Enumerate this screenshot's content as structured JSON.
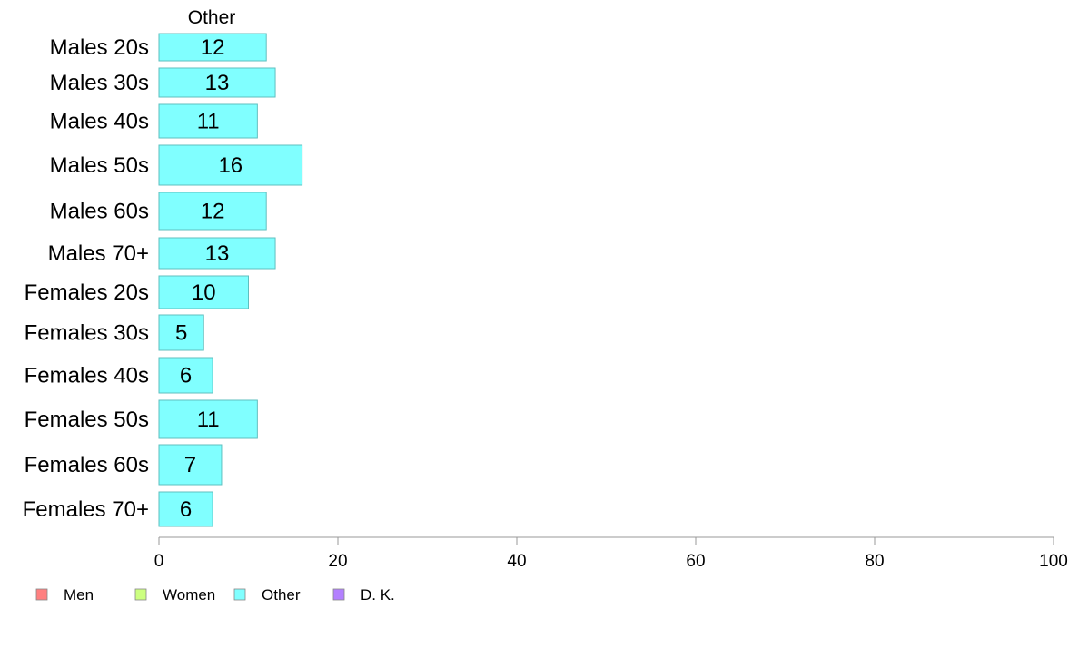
{
  "chart_data": {
    "type": "bar",
    "orientation": "horizontal",
    "panel_title": "Other",
    "categories": [
      "Males 20s",
      "Males 30s",
      "Males 40s",
      "Males 50s",
      "Males 60s",
      "Males 70+",
      "Females 20s",
      "Females 30s",
      "Females 40s",
      "Females 50s",
      "Females 60s",
      "Females 70+"
    ],
    "values": [
      12,
      13,
      11,
      16,
      12,
      13,
      10,
      5,
      6,
      11,
      7,
      6
    ],
    "xlim": [
      0,
      100
    ],
    "xticks": [
      0,
      20,
      40,
      60,
      80,
      100
    ],
    "grid": false,
    "bar_color": "#80ffff",
    "bar_stroke": "#5fbfbf",
    "legend": {
      "placement": "bottom-left",
      "items": [
        {
          "label": "Men",
          "color": "#ff8080"
        },
        {
          "label": "Women",
          "color": "#ccff80"
        },
        {
          "label": "Other",
          "color": "#80ffff"
        },
        {
          "label": "D. K.",
          "color": "#b380ff"
        }
      ]
    }
  }
}
